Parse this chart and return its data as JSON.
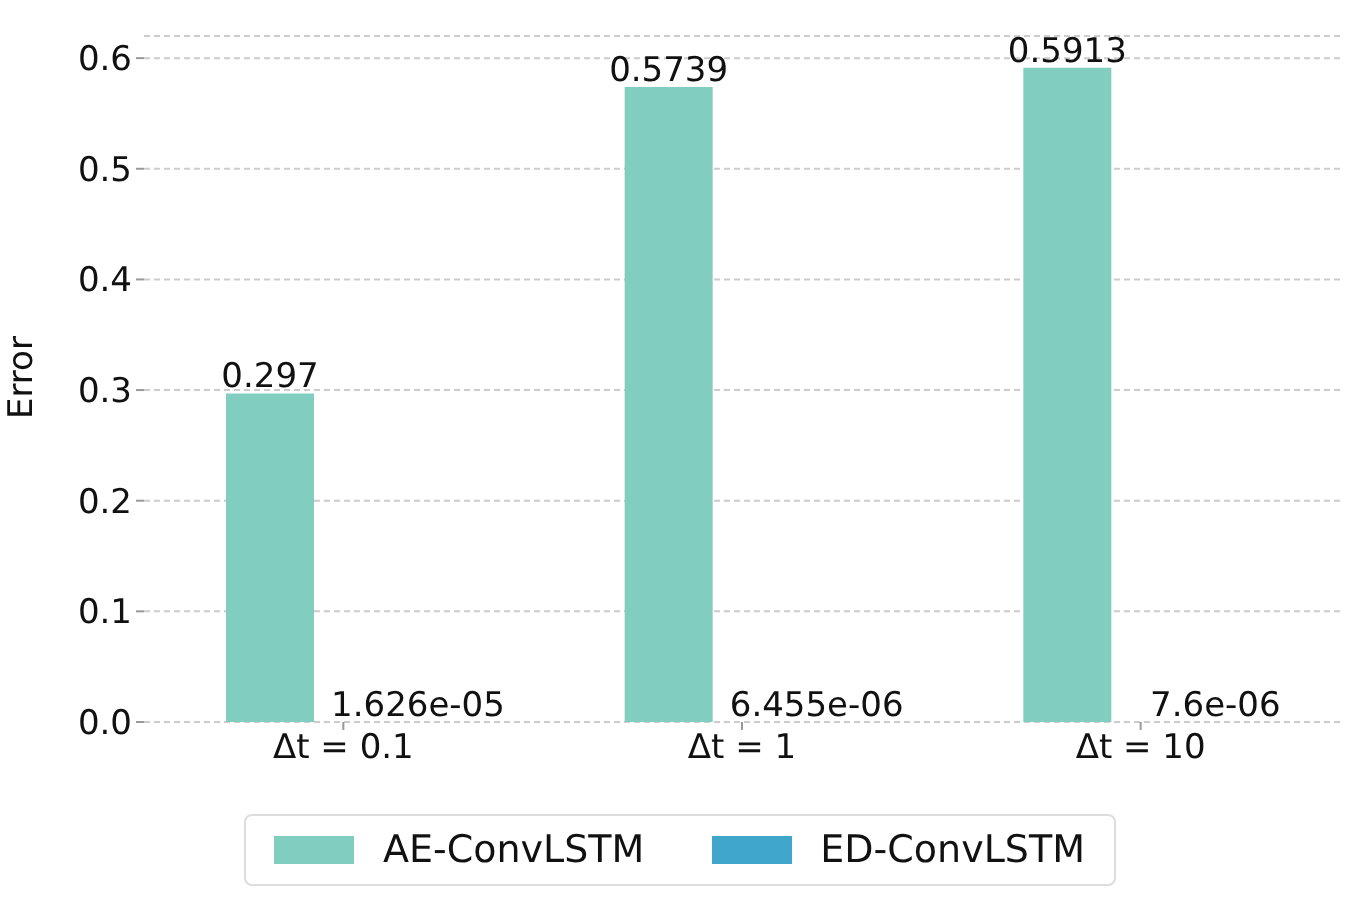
{
  "chart_data": {
    "type": "bar",
    "ylabel": "Error",
    "categories": [
      "Δt = 0.1",
      "Δt = 1",
      "Δt = 10"
    ],
    "series": [
      {
        "name": "AE-ConvLSTM",
        "color": "#81cdc0",
        "values": [
          0.297,
          0.5739,
          0.5913
        ],
        "value_labels": [
          "0.297",
          "0.5739",
          "0.5913"
        ]
      },
      {
        "name": "ED-ConvLSTM",
        "color": "#41a6cc",
        "values": [
          1.626e-05,
          6.455e-06,
          7.6e-06
        ],
        "value_labels": [
          "1.626e-05",
          "6.455e-06",
          "7.6e-06"
        ]
      }
    ],
    "ylim": [
      0,
      0.62
    ],
    "yticks": [
      {
        "value": 0,
        "label": "0.0"
      },
      0.1,
      0.2,
      0.3,
      0.4,
      0.5,
      0.6
    ],
    "grid": "y",
    "legend": "bottom"
  }
}
